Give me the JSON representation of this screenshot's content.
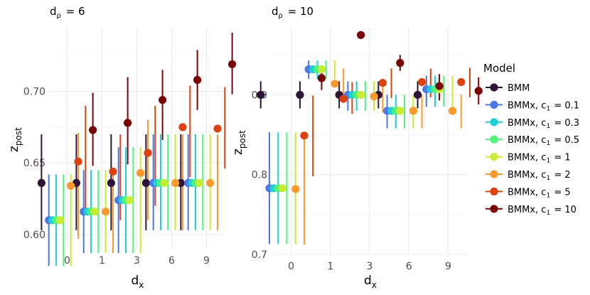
{
  "chart_data": {
    "type": "scatter",
    "ylabel": "z",
    "ylabel_sub": "post",
    "xlabel": "d",
    "xlabel_sub": "x",
    "categories": [
      "0",
      "1",
      "3",
      "6",
      "9"
    ],
    "legend": {
      "title": "Model",
      "position": "right",
      "entries": [
        {
          "label": "BMM",
          "sub": "",
          "value": "",
          "color": "#2e1436"
        },
        {
          "label": "BMMx, c",
          "sub": "1",
          "value": "= 0.1",
          "color": "#4a78e8"
        },
        {
          "label": "BMMx, c",
          "sub": "1",
          "value": "= 0.3",
          "color": "#1ecfd6"
        },
        {
          "label": "BMMx, c",
          "sub": "1",
          "value": "= 0.5",
          "color": "#4ff37a"
        },
        {
          "label": "BMMx, c",
          "sub": "1",
          "value": "= 1",
          "color": "#c8ec34"
        },
        {
          "label": "BMMx, c",
          "sub": "1",
          "value": "= 2",
          "color": "#fb9a2c"
        },
        {
          "label": "BMMx, c",
          "sub": "1",
          "value": "= 5",
          "color": "#dd4110"
        },
        {
          "label": "BMMx, c",
          "sub": "1",
          "value": "= 10",
          "color": "#7a0403"
        }
      ]
    },
    "panels": [
      {
        "title_main": "d",
        "title_sub": "ρ",
        "title_value": "= 6",
        "ylim": [
          0.59,
          0.745
        ],
        "yticks": [
          "0.60",
          "0.65",
          "0.70"
        ],
        "ytick_values": [
          0.6,
          0.65,
          0.7
        ],
        "series": [
          {
            "name": "BMM",
            "points": [
              [
                0.636,
                0.603,
                0.67
              ],
              [
                0.636,
                0.603,
                0.67
              ],
              [
                0.636,
                0.603,
                0.67
              ],
              [
                0.636,
                0.603,
                0.67
              ],
              [
                0.636,
                0.603,
                0.67
              ]
            ]
          },
          {
            "name": "BMMx, c1 = 0.1",
            "points": [
              [
                0.61,
                0.578,
                0.642
              ],
              [
                0.616,
                0.587,
                0.645
              ],
              [
                0.624,
                0.587,
                0.661
              ],
              [
                0.636,
                0.603,
                0.67
              ],
              [
                0.636,
                0.603,
                0.67
              ]
            ]
          },
          {
            "name": "BMMx, c1 = 0.3",
            "points": [
              [
                0.61,
                0.578,
                0.642
              ],
              [
                0.616,
                0.587,
                0.645
              ],
              [
                0.624,
                0.587,
                0.661
              ],
              [
                0.636,
                0.603,
                0.67
              ],
              [
                0.636,
                0.603,
                0.67
              ]
            ]
          },
          {
            "name": "BMMx, c1 = 0.5",
            "points": [
              [
                0.61,
                0.578,
                0.642
              ],
              [
                0.616,
                0.587,
                0.645
              ],
              [
                0.624,
                0.587,
                0.661
              ],
              [
                0.636,
                0.603,
                0.67
              ],
              [
                0.636,
                0.603,
                0.67
              ]
            ]
          },
          {
            "name": "BMMx, c1 = 1",
            "points": [
              [
                0.61,
                0.578,
                0.642
              ],
              [
                0.616,
                0.587,
                0.645
              ],
              [
                0.624,
                0.587,
                0.661
              ],
              [
                0.636,
                0.603,
                0.67
              ],
              [
                0.636,
                0.603,
                0.67
              ]
            ]
          },
          {
            "name": "BMMx, c1 = 2",
            "points": [
              [
                0.634,
                0.597,
                0.671
              ],
              [
                0.616,
                0.587,
                0.645
              ],
              [
                0.643,
                0.61,
                0.68
              ],
              [
                0.636,
                0.603,
                0.67
              ],
              [
                0.636,
                0.603,
                0.67
              ]
            ]
          },
          {
            "name": "BMMx, c1 = 5",
            "points": [
              [
                0.651,
                0.618,
                0.69
              ],
              [
                0.644,
                0.61,
                0.67
              ],
              [
                0.657,
                0.62,
                0.69
              ],
              [
                0.675,
                0.64,
                0.704
              ],
              [
                0.674,
                0.646,
                0.703
              ]
            ]
          },
          {
            "name": "BMMx, c1 = 10",
            "points": [
              [
                0.673,
                0.648,
                0.699
              ],
              [
                0.678,
                0.649,
                0.71
              ],
              [
                0.694,
                0.666,
                0.715
              ],
              [
                0.708,
                0.687,
                0.729
              ],
              [
                0.719,
                0.698,
                0.741
              ]
            ]
          }
        ]
      },
      {
        "title_main": "d",
        "title_sub": "ρ",
        "title_value": "= 10",
        "ylim": [
          0.7,
          0.985
        ],
        "yticks": [
          "0.7",
          "0.8",
          "0.9"
        ],
        "ytick_values": [
          0.7,
          0.8,
          0.9
        ],
        "series": [
          {
            "name": "BMM",
            "points": [
              [
                0.9,
                0.883,
                0.917
              ],
              [
                0.9,
                0.883,
                0.917
              ],
              [
                0.9,
                0.883,
                0.917
              ],
              [
                0.9,
                0.883,
                0.917
              ],
              [
                0.9,
                0.883,
                0.917
              ]
            ]
          },
          {
            "name": "BMMx, c1 = 0.1",
            "points": [
              [
                0.783,
                0.713,
                0.853
              ],
              [
                0.932,
                0.92,
                0.943
              ],
              [
                0.9,
                0.88,
                0.917
              ],
              [
                0.88,
                0.858,
                0.9
              ],
              [
                0.907,
                0.885,
                0.924
              ]
            ]
          },
          {
            "name": "BMMx, c1 = 0.3",
            "points": [
              [
                0.783,
                0.713,
                0.853
              ],
              [
                0.932,
                0.92,
                0.943
              ],
              [
                0.9,
                0.88,
                0.917
              ],
              [
                0.88,
                0.858,
                0.9
              ],
              [
                0.907,
                0.885,
                0.924
              ]
            ]
          },
          {
            "name": "BMMx, c1 = 0.5",
            "points": [
              [
                0.783,
                0.713,
                0.853
              ],
              [
                0.932,
                0.92,
                0.943
              ],
              [
                0.9,
                0.88,
                0.917
              ],
              [
                0.88,
                0.858,
                0.9
              ],
              [
                0.907,
                0.885,
                0.924
              ]
            ]
          },
          {
            "name": "BMMx, c1 = 1",
            "points": [
              [
                0.783,
                0.713,
                0.853
              ],
              [
                0.932,
                0.92,
                0.943
              ],
              [
                0.9,
                0.88,
                0.917
              ],
              [
                0.88,
                0.858,
                0.9
              ],
              [
                0.907,
                0.885,
                0.924
              ]
            ]
          },
          {
            "name": "BMMx, c1 = 2",
            "points": [
              [
                0.782,
                0.712,
                0.853
              ],
              [
                0.914,
                0.895,
                0.933
              ],
              [
                0.898,
                0.878,
                0.917
              ],
              [
                0.88,
                0.858,
                0.9
              ],
              [
                0.88,
                0.858,
                0.9
              ]
            ]
          },
          {
            "name": "BMMx, c1 = 5",
            "points": [
              [
                0.849,
                0.798,
                0.899
              ],
              [
                0.895,
                0.876,
                0.916
              ],
              [
                0.915,
                0.896,
                0.933
              ],
              [
                0.916,
                0.897,
                0.933
              ],
              [
                0.916,
                0.897,
                0.934
              ]
            ]
          },
          {
            "name": "BMMx, c1 = 10",
            "points": [
              [
                0.921,
                0.906,
                0.935
              ],
              [
                0.975,
                0.975,
                0.975
              ],
              [
                0.94,
                0.93,
                0.95
              ],
              [
                0.911,
                0.893,
                0.926
              ],
              [
                0.905,
                0.888,
                0.922
              ]
            ]
          }
        ]
      }
    ]
  }
}
